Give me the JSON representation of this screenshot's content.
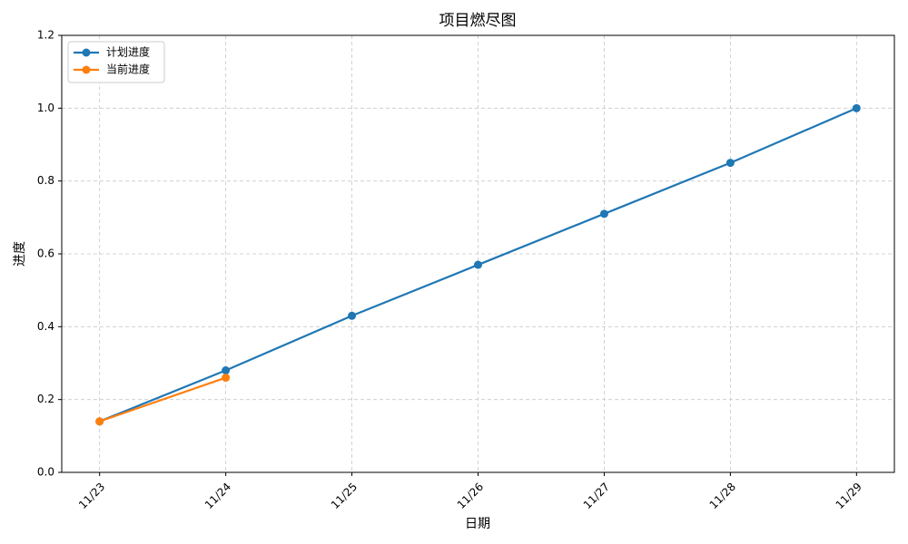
{
  "chart_data": {
    "type": "line",
    "title": "项目燃尽图",
    "x_label": "日期",
    "y_label": "进度",
    "categories": [
      "11/23",
      "11/24",
      "11/25",
      "11/26",
      "11/27",
      "11/28",
      "11/29"
    ],
    "series": [
      {
        "name": "计划进度",
        "color": "#1f77b4",
        "values": [
          0.14,
          0.28,
          0.43,
          0.57,
          0.71,
          0.85,
          1.0
        ]
      },
      {
        "name": "当前进度",
        "color": "#ff7f0e",
        "values": [
          0.14,
          0.26,
          null,
          null,
          null,
          null,
          null
        ]
      }
    ],
    "ylim": [
      0,
      1.2
    ],
    "yticks": [
      {
        "value": 0,
        "label": "0.0"
      },
      0.2,
      0.4,
      0.6,
      0.8,
      {
        "value": 1,
        "label": "1.0"
      },
      1.2
    ],
    "grid": true,
    "legend": "upper left"
  }
}
